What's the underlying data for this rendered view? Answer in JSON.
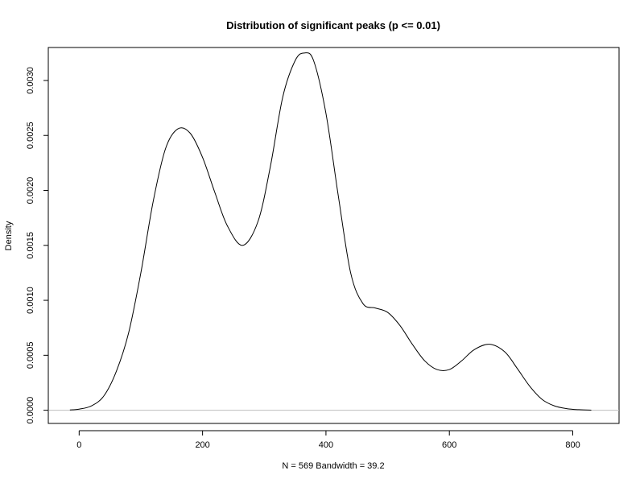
{
  "chart_data": {
    "type": "line",
    "title": "Distribution of significant peaks (p <= 0.01)",
    "xlabel": "N = 569   Bandwidth = 39.2",
    "ylabel": "Density",
    "xlim": [
      -50,
      875
    ],
    "ylim": [
      -0.00012,
      0.0033
    ],
    "x_ticks": [
      0,
      200,
      400,
      600,
      800
    ],
    "x_tick_labels": [
      "0",
      "200",
      "400",
      "600",
      "800"
    ],
    "y_ticks": [
      0,
      0.0005,
      0.001,
      0.0015,
      0.002,
      0.0025,
      0.003
    ],
    "y_tick_labels": [
      "0.0000",
      "0.0005",
      "0.0010",
      "0.0015",
      "0.0020",
      "0.0025",
      "0.0030"
    ],
    "grid": false,
    "legend": "none",
    "baseline": 0,
    "colors": {
      "line": "#000000",
      "baseline": "#bebebe",
      "frame": "#000000"
    },
    "series": [
      {
        "x": [
          -15,
          0,
          20,
          40,
          60,
          80,
          100,
          120,
          140,
          160,
          180,
          200,
          220,
          240,
          265,
          290,
          310,
          330,
          350,
          365,
          380,
          400,
          420,
          440,
          460,
          480,
          500,
          520,
          540,
          560,
          580,
          600,
          620,
          640,
          665,
          690,
          710,
          730,
          750,
          770,
          790,
          810,
          830
        ],
        "y": [
          3e-06,
          1e-05,
          4e-05,
          0.00013,
          0.00035,
          0.0007,
          0.00125,
          0.0019,
          0.00238,
          0.00256,
          0.00252,
          0.0023,
          0.00198,
          0.00168,
          0.0015,
          0.00172,
          0.00222,
          0.00285,
          0.00318,
          0.00325,
          0.00318,
          0.0027,
          0.00195,
          0.00125,
          0.00097,
          0.00093,
          0.00089,
          0.00077,
          0.0006,
          0.00045,
          0.00037,
          0.00037,
          0.00045,
          0.00055,
          0.0006,
          0.00053,
          0.00038,
          0.00022,
          0.0001,
          4e-05,
          1.5e-05,
          5e-06,
          1e-06
        ]
      }
    ]
  }
}
